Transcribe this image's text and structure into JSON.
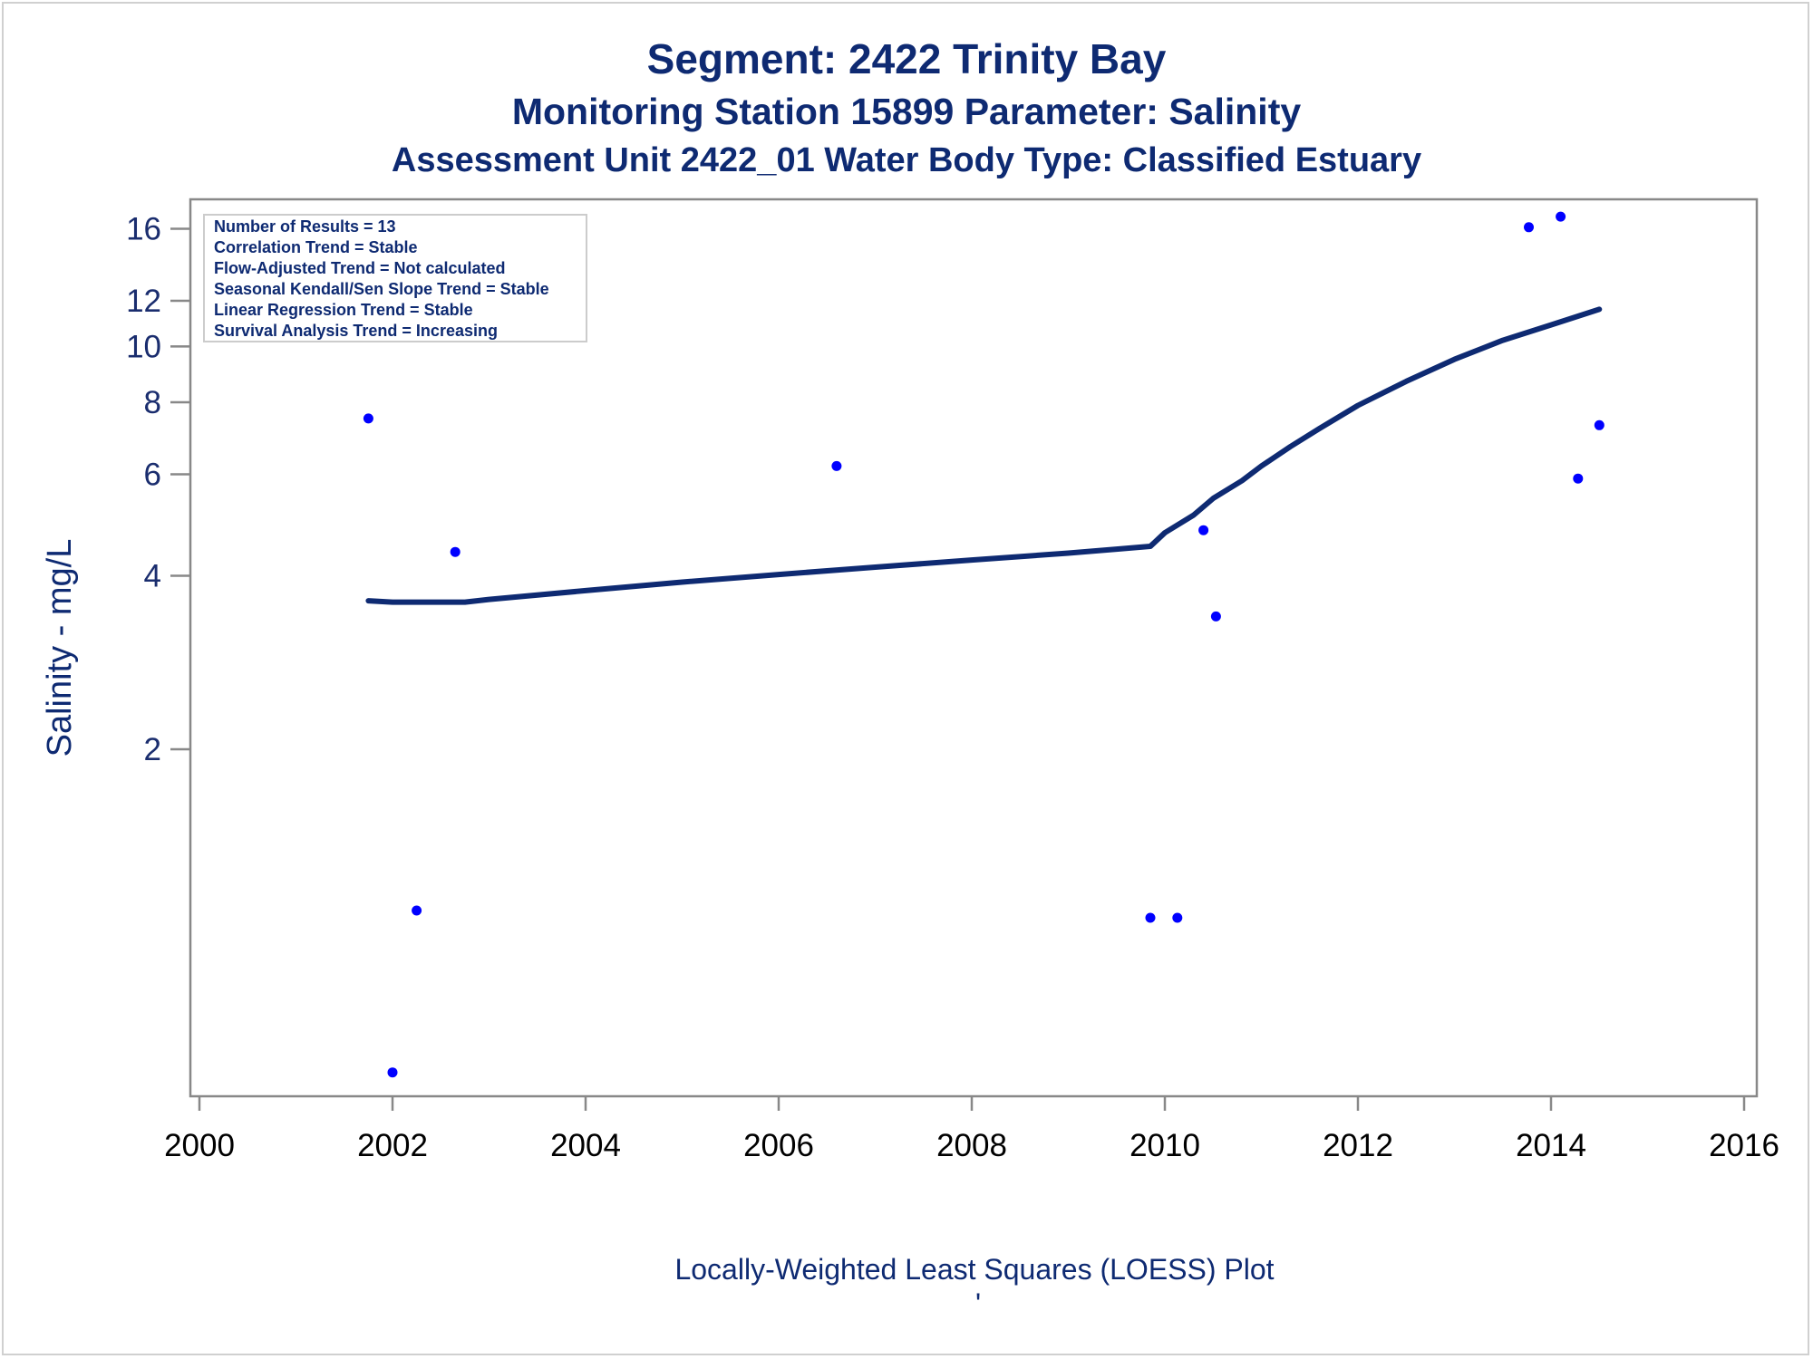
{
  "titles": {
    "line1": "Segment: 2422  Trinity Bay",
    "line2": "Monitoring Station 15899 Parameter: Salinity",
    "line3": "Assessment Unit 2422_01   Water Body Type: Classified Estuary"
  },
  "colors": {
    "title": "#0e2a72",
    "points": "#0000ff",
    "loess_line": "#0e2a72",
    "frame": "#888888"
  },
  "stats_box": {
    "lines": [
      "Number of Results = 13",
      "Correlation Trend = Stable",
      "Flow-Adjusted Trend = Not calculated",
      "Seasonal Kendall/Sen Slope Trend = Stable",
      "Linear Regression Trend = Stable",
      "Survival Analysis Trend = Increasing"
    ]
  },
  "chart_data": {
    "type": "scatter",
    "ylabel": "Salinity - mg/L",
    "xlabel": "Locally-Weighted Least Squares (LOESS) Plot",
    "xlim": [
      2000,
      2016
    ],
    "ylim": [
      0.5,
      18
    ],
    "y_scale": "log",
    "x_ticks": [
      2000,
      2002,
      2004,
      2006,
      2008,
      2010,
      2012,
      2014,
      2016
    ],
    "y_ticks": [
      2,
      4,
      6,
      8,
      10,
      12,
      16
    ],
    "y_tick_labels": [
      "2",
      "4",
      "6",
      "8",
      "10",
      "12",
      "16"
    ],
    "footnote": "'",
    "series": [
      {
        "type": "scatter",
        "x": [
          2001.75,
          2002.0,
          2002.25,
          2002.65,
          2006.6,
          2009.85,
          2010.13,
          2010.4,
          2010.53,
          2013.77,
          2014.1,
          2014.28,
          2014.5
        ],
        "y": [
          7.5,
          0.55,
          1.05,
          4.4,
          6.2,
          1.02,
          1.02,
          4.8,
          3.4,
          16.1,
          16.8,
          5.9,
          7.3
        ]
      },
      {
        "type": "line",
        "x": [
          2001.75,
          2002.0,
          2002.5,
          2002.75,
          2003,
          2004,
          2005,
          2006,
          2007,
          2008,
          2009,
          2009.5,
          2009.85,
          2010.0,
          2010.3,
          2010.5,
          2010.8,
          2011.0,
          2011.3,
          2011.6,
          2012.0,
          2012.5,
          2013.0,
          2013.5,
          2014.0,
          2014.5
        ],
        "y": [
          3.62,
          3.6,
          3.6,
          3.6,
          3.64,
          3.77,
          3.9,
          4.02,
          4.14,
          4.26,
          4.38,
          4.45,
          4.5,
          4.75,
          5.1,
          5.45,
          5.85,
          6.2,
          6.7,
          7.2,
          7.9,
          8.7,
          9.5,
          10.25,
          10.9,
          11.6
        ]
      }
    ]
  }
}
